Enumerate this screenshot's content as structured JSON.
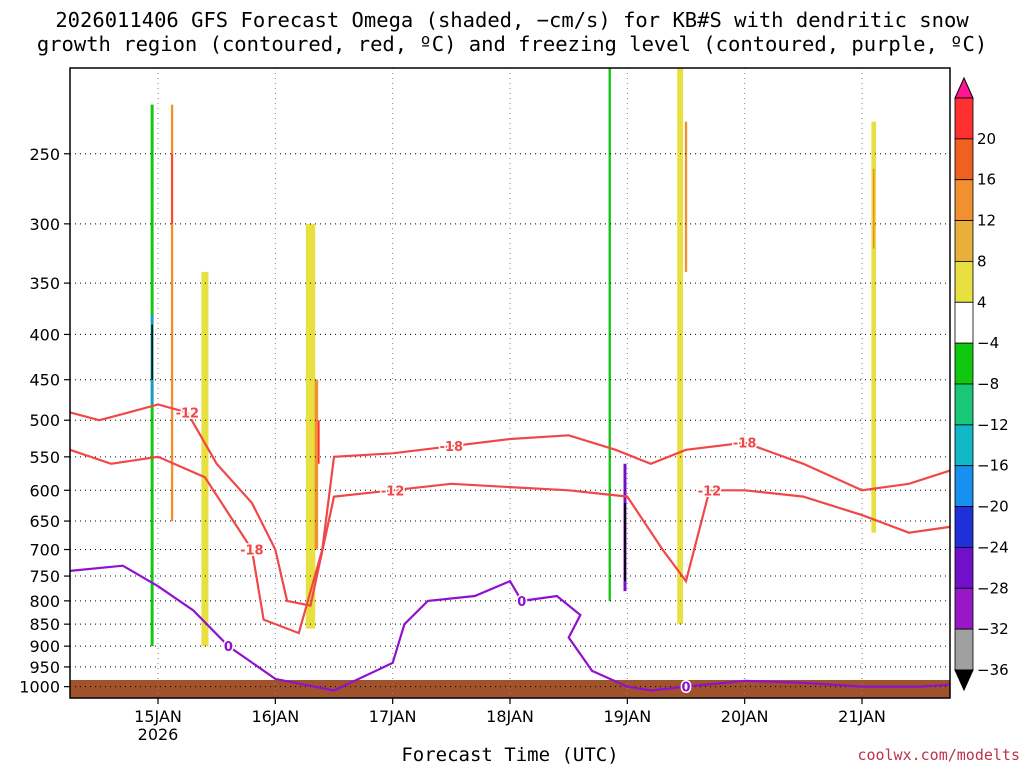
{
  "title": "2026011406 GFS Forecast Omega (shaded, −cm/s) for KB#S with dendritic snow\ngrowth region (contoured, red, ºC) and freezing level (contoured, purple, ºC)",
  "credit": "coolwx.com/modelts",
  "chart_data": {
    "type": "heatmap",
    "title": "2026011406 GFS Forecast Omega (shaded, −cm/s) for KB#S with dendritic snow growth region (contoured, red, ºC) and freezing level (contoured, purple, ºC)",
    "xlabel": "Forecast Time (UTC)",
    "ylabel": "",
    "x_ticks": [
      {
        "value": 0,
        "label": "15JAN",
        "sublabel": "2026"
      },
      {
        "value": 1,
        "label": "16JAN",
        "sublabel": ""
      },
      {
        "value": 2,
        "label": "17JAN",
        "sublabel": ""
      },
      {
        "value": 3,
        "label": "18JAN",
        "sublabel": ""
      },
      {
        "value": 4,
        "label": "19JAN",
        "sublabel": ""
      },
      {
        "value": 5,
        "label": "20JAN",
        "sublabel": ""
      },
      {
        "value": 6,
        "label": "21JAN",
        "sublabel": ""
      }
    ],
    "xlim": [
      -0.75,
      6.75
    ],
    "y_ticks": [
      "250",
      "300",
      "350",
      "400",
      "450",
      "500",
      "550",
      "600",
      "650",
      "700",
      "750",
      "800",
      "850",
      "900",
      "950",
      "1000"
    ],
    "ylim": [
      200,
      1030
    ],
    "y_scale": "log",
    "grid": true,
    "colorbar": {
      "labels": [
        "20",
        "16",
        "12",
        "8",
        "4",
        "−4",
        "−8",
        "−12",
        "−16",
        "−20",
        "−24",
        "−28",
        "−32",
        "−36"
      ],
      "colors": [
        "#ff1493",
        "#ff3030",
        "#f06020",
        "#f09030",
        "#e8b038",
        "#e8e040",
        "#ffffff",
        "#10c810",
        "#18c878",
        "#10b8c8",
        "#1890f0",
        "#2030d8",
        "#7010c8",
        "#9818c8",
        "#a0a0a0",
        "#000000"
      ]
    },
    "omega_cells": [
      {
        "t": -0.05,
        "p0": 220,
        "p1": 900,
        "w": 0.025,
        "color": "#10c810"
      },
      {
        "t": -0.05,
        "p0": 380,
        "p1": 480,
        "w": 0.02,
        "color": "#1890f0"
      },
      {
        "t": -0.05,
        "p0": 390,
        "p1": 450,
        "w": 0.012,
        "color": "#000000"
      },
      {
        "t": 0.12,
        "p0": 220,
        "p1": 650,
        "w": 0.02,
        "color": "#f09030"
      },
      {
        "t": 0.12,
        "p0": 250,
        "p1": 300,
        "w": 0.012,
        "color": "#ff3030"
      },
      {
        "t": 0.4,
        "p0": 340,
        "p1": 900,
        "w": 0.06,
        "color": "#e8e040"
      },
      {
        "t": 1.3,
        "p0": 300,
        "p1": 860,
        "w": 0.08,
        "color": "#e8e040"
      },
      {
        "t": 1.35,
        "p0": 450,
        "p1": 700,
        "w": 0.03,
        "color": "#f09030"
      },
      {
        "t": 1.37,
        "p0": 500,
        "p1": 560,
        "w": 0.015,
        "color": "#ff3030"
      },
      {
        "t": 3.85,
        "p0": 200,
        "p1": 800,
        "w": 0.02,
        "color": "#10c810"
      },
      {
        "t": 3.98,
        "p0": 560,
        "p1": 780,
        "w": 0.025,
        "color": "#7010c8"
      },
      {
        "t": 3.98,
        "p0": 620,
        "p1": 760,
        "w": 0.015,
        "color": "#000000"
      },
      {
        "t": 4.45,
        "p0": 200,
        "p1": 850,
        "w": 0.05,
        "color": "#e8e040"
      },
      {
        "t": 4.5,
        "p0": 230,
        "p1": 340,
        "w": 0.02,
        "color": "#f09030"
      },
      {
        "t": 6.1,
        "p0": 230,
        "p1": 670,
        "w": 0.04,
        "color": "#e8e040"
      },
      {
        "t": 6.1,
        "p0": 260,
        "p1": 320,
        "w": 0.015,
        "color": "#f09030"
      }
    ],
    "dgz_contours": [
      {
        "label": "-12",
        "points": [
          [
            -0.75,
            490
          ],
          [
            -0.5,
            500
          ],
          [
            -0.25,
            490
          ],
          [
            0,
            480
          ],
          [
            0.25,
            490
          ],
          [
            0.5,
            560
          ],
          [
            0.8,
            620
          ],
          [
            1.0,
            700
          ],
          [
            1.1,
            800
          ],
          [
            1.3,
            810
          ],
          [
            1.5,
            610
          ],
          [
            2.0,
            600
          ],
          [
            2.5,
            590
          ],
          [
            3.0,
            595
          ],
          [
            3.5,
            600
          ],
          [
            4.0,
            610
          ],
          [
            4.3,
            700
          ],
          [
            4.5,
            760
          ],
          [
            4.7,
            600
          ],
          [
            5.0,
            600
          ],
          [
            5.5,
            610
          ],
          [
            6.0,
            640
          ],
          [
            6.4,
            670
          ],
          [
            6.75,
            660
          ]
        ]
      },
      {
        "label": "-18",
        "points": [
          [
            -0.75,
            540
          ],
          [
            -0.4,
            560
          ],
          [
            0,
            550
          ],
          [
            0.4,
            580
          ],
          [
            0.8,
            700
          ],
          [
            0.9,
            840
          ],
          [
            1.2,
            870
          ],
          [
            1.4,
            700
          ],
          [
            1.5,
            550
          ],
          [
            2.0,
            545
          ],
          [
            2.5,
            535
          ],
          [
            3.0,
            525
          ],
          [
            3.5,
            520
          ],
          [
            3.9,
            540
          ],
          [
            4.2,
            560
          ],
          [
            4.5,
            540
          ],
          [
            5.0,
            530
          ],
          [
            5.5,
            560
          ],
          [
            6.0,
            600
          ],
          [
            6.4,
            590
          ],
          [
            6.75,
            570
          ]
        ]
      }
    ],
    "freezing_contours": [
      {
        "label": "0",
        "points": [
          [
            -0.75,
            740
          ],
          [
            -0.3,
            730
          ],
          [
            0,
            770
          ],
          [
            0.3,
            820
          ],
          [
            0.6,
            900
          ],
          [
            1.0,
            980
          ],
          [
            1.5,
            1010
          ],
          [
            2.0,
            940
          ],
          [
            2.1,
            850
          ],
          [
            2.3,
            800
          ],
          [
            2.7,
            790
          ],
          [
            3.0,
            760
          ],
          [
            3.1,
            800
          ],
          [
            3.4,
            790
          ],
          [
            3.6,
            830
          ],
          [
            3.5,
            880
          ],
          [
            3.7,
            960
          ],
          [
            4.0,
            1000
          ],
          [
            4.2,
            1010
          ],
          [
            4.5,
            1000
          ],
          [
            5.0,
            985
          ],
          [
            5.5,
            990
          ],
          [
            6.0,
            1000
          ],
          [
            6.5,
            1000
          ],
          [
            6.75,
            995
          ]
        ]
      }
    ]
  }
}
